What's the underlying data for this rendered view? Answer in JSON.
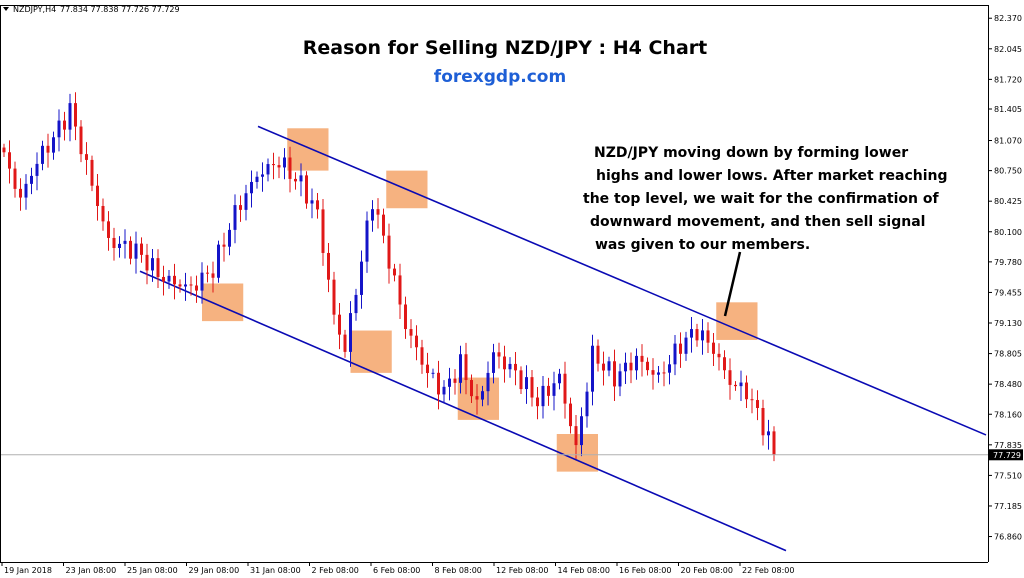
{
  "header": {
    "symbol": "NZDJPY,H4",
    "ohlc": "77.834 77.838 77.726 77.729"
  },
  "title": "Reason for Selling NZD/JPY : H4 Chart",
  "subtitle": "forexgdp.com",
  "annotation": {
    "lines": [
      "NZD/JPY moving down by forming lower",
      "highs and lower lows. After market reaching",
      "the top level, we wait for the confirmation of",
      "downward movement, and then sell signal",
      "was given to our members."
    ]
  },
  "colors": {
    "bull": "#1414c8",
    "bear": "#e01818",
    "channel": "#0a0ab4",
    "highlight": "#f5a46a",
    "current_price_line": "#b0b0b0",
    "price_tag_bg": "#000000"
  },
  "chart_data": {
    "type": "candlestick",
    "ylim": [
      76.6,
      82.5
    ],
    "y_ticks": [
      "82.370",
      "82.045",
      "81.720",
      "81.405",
      "81.070",
      "80.750",
      "80.425",
      "80.100",
      "79.780",
      "79.455",
      "79.130",
      "78.805",
      "78.480",
      "78.160",
      "77.835",
      "77.510",
      "77.185",
      "76.860"
    ],
    "x_ticks": [
      "19 Jan 2018",
      "23 Jan 08:00",
      "25 Jan 08:00",
      "29 Jan 08:00",
      "31 Jan 08:00",
      "2 Feb 08:00",
      "6 Feb 08:00",
      "8 Feb 08:00",
      "12 Feb 08:00",
      "14 Feb 08:00",
      "16 Feb 08:00",
      "20 Feb 08:00",
      "22 Feb 08:00"
    ],
    "current_price": "77.729",
    "channel_upper": [
      [
        0.0,
        81.22
      ],
      [
        1.0,
        77.94
      ]
    ],
    "channel_lower": [
      [
        0.0,
        79.68
      ],
      [
        1.0,
        76.71
      ]
    ],
    "anchors": [
      {
        "i": 0,
        "p": 80.9
      },
      {
        "i": 3,
        "p": 80.45
      },
      {
        "i": 6,
        "p": 80.85
      },
      {
        "i": 9,
        "p": 81.1
      },
      {
        "i": 12,
        "p": 81.4
      },
      {
        "i": 15,
        "p": 80.8
      },
      {
        "i": 19,
        "p": 80.0
      },
      {
        "i": 24,
        "p": 79.9
      },
      {
        "i": 29,
        "p": 79.6
      },
      {
        "i": 34,
        "p": 79.5
      },
      {
        "i": 38,
        "p": 79.7
      },
      {
        "i": 42,
        "p": 80.3
      },
      {
        "i": 46,
        "p": 80.7
      },
      {
        "i": 50,
        "p": 80.85
      },
      {
        "i": 54,
        "p": 80.6
      },
      {
        "i": 57,
        "p": 80.3
      },
      {
        "i": 60,
        "p": 79.2
      },
      {
        "i": 62,
        "p": 78.85
      },
      {
        "i": 65,
        "p": 79.8
      },
      {
        "i": 67,
        "p": 80.45
      },
      {
        "i": 70,
        "p": 79.8
      },
      {
        "i": 73,
        "p": 79.1
      },
      {
        "i": 77,
        "p": 78.6
      },
      {
        "i": 80,
        "p": 78.4
      },
      {
        "i": 83,
        "p": 78.7
      },
      {
        "i": 86,
        "p": 78.25
      },
      {
        "i": 89,
        "p": 78.8
      },
      {
        "i": 93,
        "p": 78.6
      },
      {
        "i": 97,
        "p": 78.3
      },
      {
        "i": 101,
        "p": 78.55
      },
      {
        "i": 104,
        "p": 77.8
      },
      {
        "i": 107,
        "p": 78.8
      },
      {
        "i": 111,
        "p": 78.55
      },
      {
        "i": 115,
        "p": 78.75
      },
      {
        "i": 119,
        "p": 78.55
      },
      {
        "i": 123,
        "p": 78.9
      },
      {
        "i": 126,
        "p": 79.05
      },
      {
        "i": 129,
        "p": 78.85
      },
      {
        "i": 132,
        "p": 78.5
      },
      {
        "i": 135,
        "p": 78.4
      },
      {
        "i": 138,
        "p": 78.05
      },
      {
        "i": 140,
        "p": 77.729
      }
    ],
    "highlights": [
      {
        "i0": 51.5,
        "i1": 59.0,
        "p0": 80.75,
        "p1": 81.2
      },
      {
        "i0": 69.5,
        "i1": 77.0,
        "p0": 80.35,
        "p1": 80.75
      },
      {
        "i0": 36.0,
        "i1": 43.5,
        "p0": 79.15,
        "p1": 79.55
      },
      {
        "i0": 63.0,
        "i1": 70.5,
        "p0": 78.6,
        "p1": 79.05
      },
      {
        "i0": 82.5,
        "i1": 90.0,
        "p0": 78.1,
        "p1": 78.55
      },
      {
        "i0": 100.5,
        "i1": 108.0,
        "p0": 77.55,
        "p1": 77.95
      },
      {
        "i0": 129.5,
        "i1": 137.0,
        "p0": 78.95,
        "p1": 79.35
      }
    ]
  }
}
